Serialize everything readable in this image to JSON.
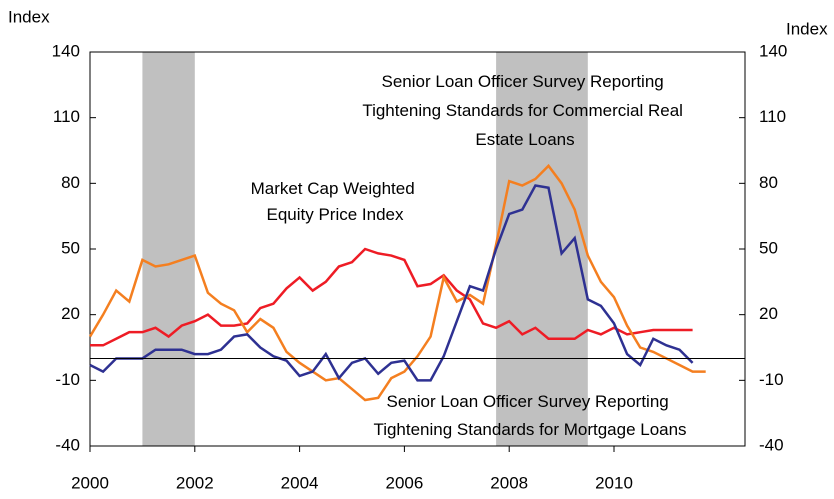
{
  "chart_data": {
    "type": "line",
    "y_label": "Index",
    "y2_label": "Index",
    "xlim": [
      2000,
      2012.5
    ],
    "xticks": [
      2000,
      2002,
      2004,
      2006,
      2008,
      2010
    ],
    "ylim": [
      -40,
      140
    ],
    "yticks": [
      -40,
      -10,
      20,
      50,
      80,
      110,
      140
    ],
    "y2lim": [
      -40,
      140
    ],
    "y2ticks": [
      -40,
      -10,
      20,
      50,
      80,
      110,
      140
    ],
    "reference_line": 0,
    "shaded_periods": [
      [
        2001,
        2002
      ],
      [
        2007.75,
        2009.5
      ]
    ],
    "shade_color": "#c0c0c0",
    "series": [
      {
        "name": "Market Cap Weighted Equity Price Index",
        "color": "#ee1c25",
        "x": [
          2000,
          2000.25,
          2000.5,
          2000.75,
          2001,
          2001.25,
          2001.5,
          2001.75,
          2002,
          2002.25,
          2002.5,
          2002.75,
          2003,
          2003.25,
          2003.5,
          2003.75,
          2004,
          2004.25,
          2004.5,
          2004.75,
          2005,
          2005.25,
          2005.5,
          2005.75,
          2006,
          2006.25,
          2006.5,
          2006.75,
          2007,
          2007.25,
          2007.5,
          2007.75,
          2008,
          2008.25,
          2008.5,
          2008.75,
          2009,
          2009.25,
          2009.5,
          2009.75,
          2010,
          2010.25,
          2010.5,
          2010.75,
          2011,
          2011.25,
          2011.5
        ],
        "values": [
          6,
          6,
          9,
          12,
          12,
          14,
          10,
          15,
          17,
          20,
          15,
          15,
          16,
          23,
          25,
          32,
          37,
          31,
          35,
          42,
          44,
          50,
          48,
          47,
          45,
          33,
          34,
          38,
          31,
          27,
          16,
          14,
          17,
          11,
          14,
          9,
          9,
          9,
          13,
          11,
          14,
          11,
          12,
          13,
          13,
          13,
          13
        ]
      },
      {
        "name": "Senior Loan Officer Survey Reporting Tightening Standards for Commercial Real Estate Loans",
        "color": "#f47f20",
        "x": [
          2000,
          2000.25,
          2000.5,
          2000.75,
          2001,
          2001.25,
          2001.5,
          2001.75,
          2002,
          2002.25,
          2002.5,
          2002.75,
          2003,
          2003.25,
          2003.5,
          2003.75,
          2004,
          2004.25,
          2004.5,
          2004.75,
          2005,
          2005.25,
          2005.5,
          2005.75,
          2006,
          2006.25,
          2006.5,
          2006.75,
          2007,
          2007.25,
          2007.5,
          2007.75,
          2008,
          2008.25,
          2008.5,
          2008.75,
          2009,
          2009.25,
          2009.5,
          2009.75,
          2010,
          2010.25,
          2010.5,
          2010.75,
          2011,
          2011.25,
          2011.5,
          2011.75
        ],
        "values": [
          10,
          20,
          31,
          26,
          45,
          42,
          43,
          45,
          47,
          30,
          25,
          22,
          12,
          18,
          14,
          3,
          -2,
          -6,
          -10,
          -9,
          -14,
          -19,
          -18,
          -9,
          -6,
          1,
          10,
          37,
          26,
          29,
          25,
          52,
          81,
          79,
          82,
          88,
          80,
          68,
          47,
          35,
          28,
          15,
          5,
          3,
          0,
          -3,
          -6,
          -6
        ]
      },
      {
        "name": "Senior Loan Officer Survey Reporting Tightening Standards for Mortgage Loans",
        "color": "#2e3192",
        "x": [
          2000,
          2000.25,
          2000.5,
          2000.75,
          2001,
          2001.25,
          2001.5,
          2001.75,
          2002,
          2002.25,
          2002.5,
          2002.75,
          2003,
          2003.25,
          2003.5,
          2003.75,
          2004,
          2004.25,
          2004.5,
          2004.75,
          2005,
          2005.25,
          2005.5,
          2005.75,
          2006,
          2006.25,
          2006.5,
          2006.75,
          2007,
          2007.25,
          2007.5,
          2007.75,
          2008,
          2008.25,
          2008.5,
          2008.75,
          2009,
          2009.25,
          2009.5,
          2009.75,
          2010,
          2010.25,
          2010.5,
          2010.75,
          2011,
          2011.25,
          2011.5
        ],
        "values": [
          -3,
          -6,
          0,
          0,
          0,
          4,
          4,
          4,
          2,
          2,
          4,
          10,
          11,
          5,
          1,
          -1,
          -8,
          -6,
          2,
          -9,
          -2,
          0,
          -7,
          -2,
          -1,
          -10,
          -10,
          1,
          17,
          33,
          31,
          50,
          66,
          68,
          79,
          78,
          48,
          55,
          27,
          24,
          16,
          2,
          -3,
          9,
          6,
          4,
          -2
        ]
      }
    ],
    "annotations": [
      {
        "lines": [
          "Market Cap Weighted",
          "Equity Price Index"
        ],
        "color": "#ee1c25"
      },
      {
        "lines": [
          "Senior Loan Officer Survey Reporting",
          "Tightening Standards for Commercial Real",
          "Estate Loans"
        ],
        "color": "#f47f20"
      },
      {
        "lines": [
          "Senior Loan Officer Survey Reporting",
          "Tightening Standards for Mortgage Loans"
        ],
        "color": "#2e3192"
      }
    ]
  }
}
